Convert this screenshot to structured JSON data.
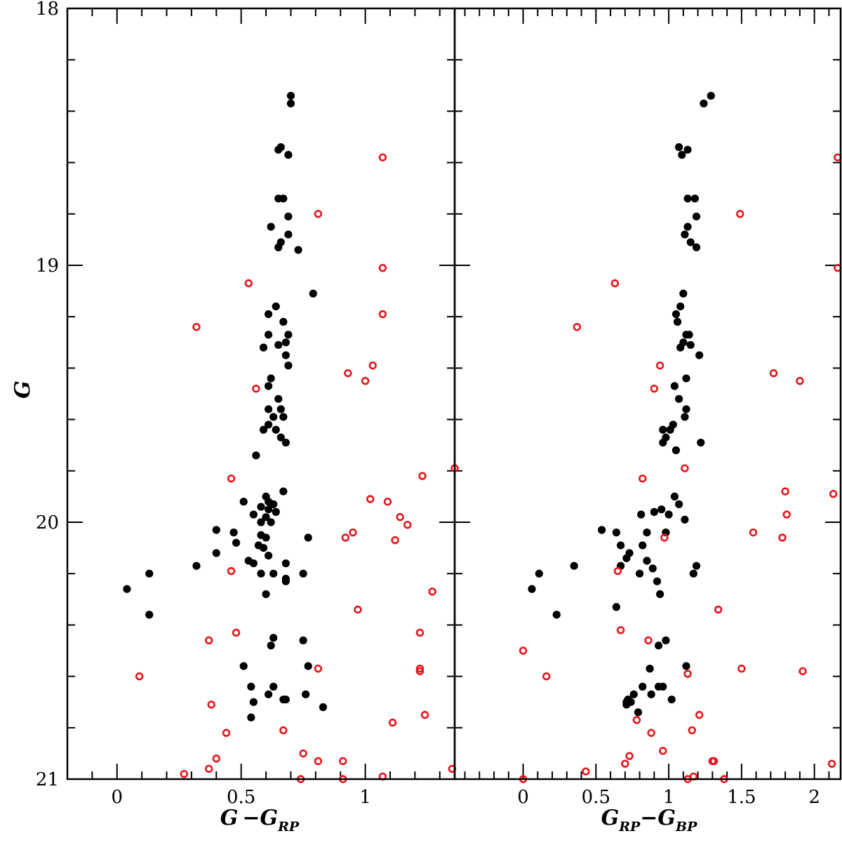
{
  "colors": {
    "members": "#000000",
    "field": "#e8151b"
  },
  "chart_data": [
    {
      "type": "scatter",
      "panel": "left",
      "xlabel": {
        "main": "G −G",
        "sub": "RP"
      },
      "ylabel": "G",
      "xlim": [
        -0.2,
        1.36
      ],
      "ylim": [
        21.0,
        18.0
      ],
      "y_inverted": true,
      "xticks_major": [
        0,
        0.5,
        1
      ],
      "xtick_labels": [
        "0",
        "0.5",
        "1"
      ],
      "yticks_major": [
        18,
        19,
        20,
        21
      ],
      "ytick_labels": [
        "18",
        "19",
        "20",
        "21"
      ],
      "series": [
        {
          "marker": "filled-circle",
          "points": [
            [
              0.7,
              18.34
            ],
            [
              0.7,
              18.37
            ],
            [
              0.66,
              18.54
            ],
            [
              0.65,
              18.55
            ],
            [
              0.69,
              18.57
            ],
            [
              0.65,
              18.74
            ],
            [
              0.67,
              18.74
            ],
            [
              0.69,
              18.81
            ],
            [
              0.62,
              18.85
            ],
            [
              0.69,
              18.88
            ],
            [
              0.66,
              18.91
            ],
            [
              0.65,
              18.93
            ],
            [
              0.73,
              18.94
            ],
            [
              0.79,
              19.11
            ],
            [
              0.61,
              19.19
            ],
            [
              0.64,
              19.16
            ],
            [
              0.67,
              19.22
            ],
            [
              0.61,
              19.27
            ],
            [
              0.69,
              19.27
            ],
            [
              0.68,
              19.3
            ],
            [
              0.59,
              19.32
            ],
            [
              0.65,
              19.31
            ],
            [
              0.68,
              19.35
            ],
            [
              0.69,
              19.39
            ],
            [
              0.62,
              19.44
            ],
            [
              0.61,
              19.47
            ],
            [
              0.65,
              19.52
            ],
            [
              0.61,
              19.56
            ],
            [
              0.66,
              19.56
            ],
            [
              0.63,
              19.59
            ],
            [
              0.67,
              19.59
            ],
            [
              0.61,
              19.62
            ],
            [
              0.59,
              19.64
            ],
            [
              0.64,
              19.64
            ],
            [
              0.66,
              19.67
            ],
            [
              0.68,
              19.69
            ],
            [
              0.56,
              19.74
            ],
            [
              0.67,
              19.88
            ],
            [
              0.6,
              19.9
            ],
            [
              0.51,
              19.92
            ],
            [
              0.61,
              19.92
            ],
            [
              0.63,
              19.93
            ],
            [
              0.58,
              19.94
            ],
            [
              0.61,
              19.95
            ],
            [
              0.64,
              19.96
            ],
            [
              0.6,
              19.98
            ],
            [
              0.55,
              19.97
            ],
            [
              0.58,
              20.0
            ],
            [
              0.62,
              20.0
            ],
            [
              0.4,
              20.03
            ],
            [
              0.47,
              20.04
            ],
            [
              0.58,
              20.05
            ],
            [
              0.6,
              20.06
            ],
            [
              0.48,
              20.08
            ],
            [
              0.57,
              20.09
            ],
            [
              0.59,
              20.1
            ],
            [
              0.77,
              20.06
            ],
            [
              0.4,
              20.12
            ],
            [
              0.61,
              20.13
            ],
            [
              0.53,
              20.15
            ],
            [
              0.55,
              20.16
            ],
            [
              0.68,
              20.16
            ],
            [
              0.32,
              20.17
            ],
            [
              0.75,
              20.2
            ],
            [
              0.58,
              20.2
            ],
            [
              0.63,
              20.2
            ],
            [
              0.68,
              20.22
            ],
            [
              0.68,
              20.23
            ],
            [
              0.13,
              20.2
            ],
            [
              0.04,
              20.26
            ],
            [
              0.6,
              20.28
            ],
            [
              0.13,
              20.36
            ],
            [
              0.75,
              20.46
            ],
            [
              0.63,
              20.45
            ],
            [
              0.62,
              20.48
            ],
            [
              0.51,
              20.56
            ],
            [
              0.77,
              20.56
            ],
            [
              0.54,
              20.64
            ],
            [
              0.61,
              20.67
            ],
            [
              0.63,
              20.64
            ],
            [
              0.67,
              20.69
            ],
            [
              0.68,
              20.69
            ],
            [
              0.76,
              20.67
            ],
            [
              0.55,
              20.7
            ],
            [
              0.83,
              20.72
            ],
            [
              0.54,
              20.76
            ]
          ]
        },
        {
          "marker": "open-circle",
          "points": [
            [
              1.07,
              18.58
            ],
            [
              0.81,
              18.8
            ],
            [
              1.07,
              19.01
            ],
            [
              0.53,
              19.07
            ],
            [
              1.07,
              19.19
            ],
            [
              0.32,
              19.24
            ],
            [
              1.03,
              19.39
            ],
            [
              0.93,
              19.42
            ],
            [
              1.0,
              19.45
            ],
            [
              0.56,
              19.48
            ],
            [
              1.36,
              19.79
            ],
            [
              0.46,
              19.83
            ],
            [
              1.23,
              19.82
            ],
            [
              1.02,
              19.91
            ],
            [
              1.09,
              19.92
            ],
            [
              1.14,
              19.98
            ],
            [
              1.17,
              20.01
            ],
            [
              0.95,
              20.04
            ],
            [
              0.92,
              20.06
            ],
            [
              1.12,
              20.07
            ],
            [
              0.46,
              20.19
            ],
            [
              1.27,
              20.27
            ],
            [
              0.97,
              20.34
            ],
            [
              0.48,
              20.43
            ],
            [
              0.37,
              20.46
            ],
            [
              1.22,
              20.43
            ],
            [
              0.81,
              20.57
            ],
            [
              1.22,
              20.57
            ],
            [
              1.22,
              20.58
            ],
            [
              0.09,
              20.6
            ],
            [
              0.38,
              20.71
            ],
            [
              1.24,
              20.75
            ],
            [
              1.11,
              20.78
            ],
            [
              0.67,
              20.81
            ],
            [
              0.44,
              20.82
            ],
            [
              0.75,
              20.9
            ],
            [
              0.4,
              20.92
            ],
            [
              0.81,
              20.93
            ],
            [
              0.91,
              20.93
            ],
            [
              0.37,
              20.96
            ],
            [
              1.35,
              20.96
            ],
            [
              0.27,
              20.98
            ],
            [
              1.07,
              20.99
            ],
            [
              0.74,
              21.0
            ],
            [
              0.91,
              21.0
            ]
          ]
        }
      ]
    },
    {
      "type": "scatter",
      "panel": "right",
      "xlabel": {
        "main": "G",
        "sub1": "RP",
        "mid": "−G",
        "sub2": "BP"
      },
      "xlim": [
        -0.47,
        2.18
      ],
      "ylim": [
        21.0,
        18.0
      ],
      "y_inverted": true,
      "xticks_major": [
        0,
        0.5,
        1,
        1.5,
        2
      ],
      "xtick_labels": [
        "0",
        "0.5",
        "1",
        "1.5",
        "2"
      ],
      "series": [
        {
          "marker": "filled-circle",
          "points": [
            [
              1.29,
              18.34
            ],
            [
              1.24,
              18.37
            ],
            [
              1.07,
              18.54
            ],
            [
              1.13,
              18.55
            ],
            [
              1.09,
              18.57
            ],
            [
              1.13,
              18.74
            ],
            [
              1.18,
              18.74
            ],
            [
              1.19,
              18.81
            ],
            [
              1.13,
              18.85
            ],
            [
              1.11,
              18.88
            ],
            [
              1.15,
              18.91
            ],
            [
              1.19,
              18.93
            ],
            [
              1.1,
              19.11
            ],
            [
              1.08,
              19.16
            ],
            [
              1.05,
              19.19
            ],
            [
              1.06,
              19.22
            ],
            [
              1.12,
              19.27
            ],
            [
              1.14,
              19.27
            ],
            [
              1.1,
              19.3
            ],
            [
              1.08,
              19.32
            ],
            [
              1.15,
              19.31
            ],
            [
              1.21,
              19.35
            ],
            [
              1.12,
              19.44
            ],
            [
              1.04,
              19.47
            ],
            [
              1.07,
              19.52
            ],
            [
              1.12,
              19.56
            ],
            [
              1.11,
              19.59
            ],
            [
              1.03,
              19.62
            ],
            [
              0.96,
              19.64
            ],
            [
              1.01,
              19.64
            ],
            [
              0.98,
              19.67
            ],
            [
              1.22,
              19.69
            ],
            [
              1.05,
              19.72
            ],
            [
              0.96,
              19.69
            ],
            [
              1.04,
              19.9
            ],
            [
              1.07,
              19.93
            ],
            [
              0.95,
              19.95
            ],
            [
              0.9,
              19.96
            ],
            [
              1.0,
              19.97
            ],
            [
              0.81,
              19.97
            ],
            [
              1.11,
              19.99
            ],
            [
              0.54,
              20.03
            ],
            [
              0.64,
              20.04
            ],
            [
              0.85,
              20.04
            ],
            [
              0.98,
              20.04
            ],
            [
              0.67,
              20.09
            ],
            [
              0.82,
              20.09
            ],
            [
              0.73,
              20.12
            ],
            [
              0.71,
              20.14
            ],
            [
              0.85,
              20.15
            ],
            [
              0.67,
              20.17
            ],
            [
              0.35,
              20.17
            ],
            [
              0.89,
              20.18
            ],
            [
              1.19,
              20.17
            ],
            [
              0.8,
              20.2
            ],
            [
              0.92,
              20.23
            ],
            [
              0.11,
              20.2
            ],
            [
              1.17,
              20.2
            ],
            [
              0.06,
              20.26
            ],
            [
              0.94,
              20.28
            ],
            [
              0.64,
              20.33
            ],
            [
              0.23,
              20.36
            ],
            [
              0.98,
              20.46
            ],
            [
              0.93,
              20.48
            ],
            [
              1.12,
              20.56
            ],
            [
              0.87,
              20.57
            ],
            [
              0.82,
              20.64
            ],
            [
              0.93,
              20.64
            ],
            [
              0.96,
              20.64
            ],
            [
              0.76,
              20.67
            ],
            [
              0.88,
              20.67
            ],
            [
              0.72,
              20.69
            ],
            [
              0.71,
              20.7
            ],
            [
              1.02,
              20.69
            ],
            [
              0.74,
              20.7
            ],
            [
              0.71,
              20.71
            ],
            [
              0.79,
              20.74
            ]
          ]
        },
        {
          "marker": "open-circle",
          "points": [
            [
              2.16,
              18.58
            ],
            [
              1.49,
              18.8
            ],
            [
              2.16,
              19.01
            ],
            [
              0.63,
              19.07
            ],
            [
              0.37,
              19.24
            ],
            [
              1.72,
              19.42
            ],
            [
              0.9,
              19.48
            ],
            [
              0.94,
              19.39
            ],
            [
              1.9,
              19.45
            ],
            [
              1.11,
              19.79
            ],
            [
              0.82,
              19.83
            ],
            [
              1.8,
              19.88
            ],
            [
              2.13,
              19.89
            ],
            [
              1.81,
              19.97
            ],
            [
              1.58,
              20.04
            ],
            [
              0.97,
              20.06
            ],
            [
              1.78,
              20.06
            ],
            [
              0.65,
              20.19
            ],
            [
              1.34,
              20.34
            ],
            [
              0.67,
              20.42
            ],
            [
              0.86,
              20.46
            ],
            [
              0.0,
              20.5
            ],
            [
              1.5,
              20.57
            ],
            [
              1.92,
              20.58
            ],
            [
              0.16,
              20.6
            ],
            [
              1.13,
              20.59
            ],
            [
              0.78,
              20.77
            ],
            [
              1.21,
              20.75
            ],
            [
              0.88,
              20.82
            ],
            [
              1.16,
              20.81
            ],
            [
              0.96,
              20.89
            ],
            [
              0.73,
              20.91
            ],
            [
              0.7,
              20.94
            ],
            [
              1.31,
              20.93
            ],
            [
              1.3,
              20.93
            ],
            [
              0.43,
              20.97
            ],
            [
              2.12,
              20.94
            ],
            [
              1.17,
              20.99
            ],
            [
              0.0,
              21.0
            ],
            [
              1.13,
              21.0
            ],
            [
              1.38,
              21.0
            ]
          ]
        }
      ]
    }
  ]
}
